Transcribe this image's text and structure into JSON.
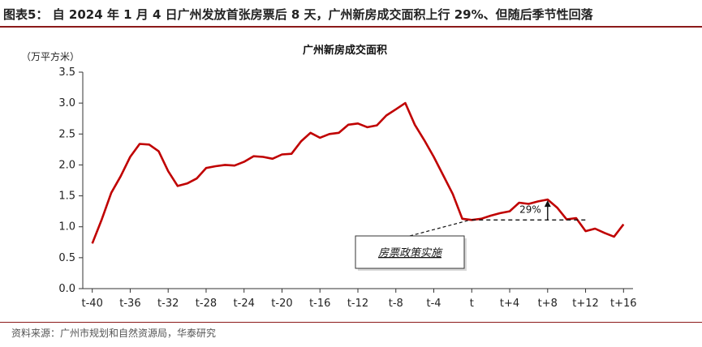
{
  "figure": {
    "title": "图表5：  自 2024 年 1 月 4 日广州发放首张房票后 8 天，广州新房成交面积上行 29%、但随后季节性回落",
    "source": "资料来源：广州市规划和自然资源局，华泰研究"
  },
  "chart_data": {
    "type": "line",
    "title": "广州新房成交面积",
    "unit_label": "（万平方米）",
    "xlabel": "",
    "ylabel": "",
    "ylim": [
      0,
      3.5
    ],
    "yticks": [
      "0.0",
      "0.5",
      "1.0",
      "1.5",
      "2.0",
      "2.5",
      "3.0",
      "3.5"
    ],
    "xtick_labels": [
      "t-40",
      "t-36",
      "t-32",
      "t-28",
      "t-24",
      "t-20",
      "t-16",
      "t-12",
      "t-8",
      "t-4",
      "t",
      "t+4",
      "t+8",
      "t+12",
      "t+16"
    ],
    "xtick_offsets": [
      -40,
      -36,
      -32,
      -28,
      -24,
      -20,
      -16,
      -12,
      -8,
      -4,
      0,
      4,
      8,
      12,
      16
    ],
    "line_color": "#c00000",
    "series": [
      {
        "name": "",
        "x": [
          -40,
          -39,
          -38,
          -37,
          -36,
          -35,
          -34,
          -33,
          -32,
          -31,
          -30,
          -29,
          -28,
          -27,
          -26,
          -25,
          -24,
          -23,
          -22,
          -21,
          -20,
          -19,
          -18,
          -17,
          -16,
          -15,
          -14,
          -13,
          -12,
          -11,
          -10,
          -9,
          -8,
          -7,
          -6,
          -5,
          -4,
          -3,
          -2,
          -1,
          0,
          1,
          2,
          3,
          4,
          5,
          6,
          7,
          8,
          9,
          10,
          11,
          12,
          13,
          14,
          15,
          16
        ],
        "values": [
          0.73,
          1.12,
          1.55,
          1.82,
          2.13,
          2.34,
          2.33,
          2.22,
          1.9,
          1.66,
          1.7,
          1.78,
          1.95,
          1.98,
          2.0,
          1.99,
          2.05,
          2.14,
          2.13,
          2.1,
          2.17,
          2.18,
          2.38,
          2.52,
          2.44,
          2.5,
          2.52,
          2.65,
          2.67,
          2.61,
          2.64,
          2.8,
          2.9,
          3.0,
          2.65,
          2.4,
          2.13,
          1.83,
          1.53,
          1.13,
          1.11,
          1.13,
          1.18,
          1.22,
          1.25,
          1.39,
          1.37,
          1.41,
          1.44,
          1.31,
          1.12,
          1.14,
          0.93,
          0.97,
          0.9,
          0.84,
          1.04
        ]
      }
    ],
    "annotations": {
      "increase_label": "29%",
      "policy_label": "房票政策实施"
    }
  }
}
